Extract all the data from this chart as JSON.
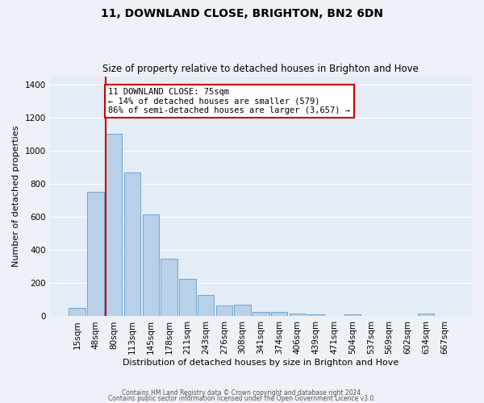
{
  "title": "11, DOWNLAND CLOSE, BRIGHTON, BN2 6DN",
  "subtitle": "Size of property relative to detached houses in Brighton and Hove",
  "xlabel": "Distribution of detached houses by size in Brighton and Hove",
  "ylabel": "Number of detached properties",
  "bar_labels": [
    "15sqm",
    "48sqm",
    "80sqm",
    "113sqm",
    "145sqm",
    "178sqm",
    "211sqm",
    "243sqm",
    "276sqm",
    "308sqm",
    "341sqm",
    "374sqm",
    "406sqm",
    "439sqm",
    "471sqm",
    "504sqm",
    "537sqm",
    "569sqm",
    "602sqm",
    "634sqm",
    "667sqm"
  ],
  "bar_heights": [
    50,
    750,
    1100,
    870,
    615,
    350,
    228,
    130,
    65,
    70,
    28,
    25,
    18,
    12,
    0,
    12,
    0,
    0,
    0,
    15,
    0
  ],
  "bar_color": "#b8d0e8",
  "bar_edge_color": "#5a9fd4",
  "ylim": [
    0,
    1450
  ],
  "yticks": [
    0,
    200,
    400,
    600,
    800,
    1000,
    1200,
    1400
  ],
  "red_line_bin": 2,
  "annotation_title": "11 DOWNLAND CLOSE: 75sqm",
  "annotation_line1": "← 14% of detached houses are smaller (579)",
  "annotation_line2": "86% of semi-detached houses are larger (3,657) →",
  "annotation_box_color": "#ffffff",
  "annotation_box_edge": "#cc0000",
  "red_line_color": "#cc0000",
  "footer1": "Contains HM Land Registry data © Crown copyright and database right 2024.",
  "footer2": "Contains public sector information licensed under the Open Government Licence v3.0.",
  "background_color": "#eef2f8",
  "plot_background": "#e4ecf6"
}
